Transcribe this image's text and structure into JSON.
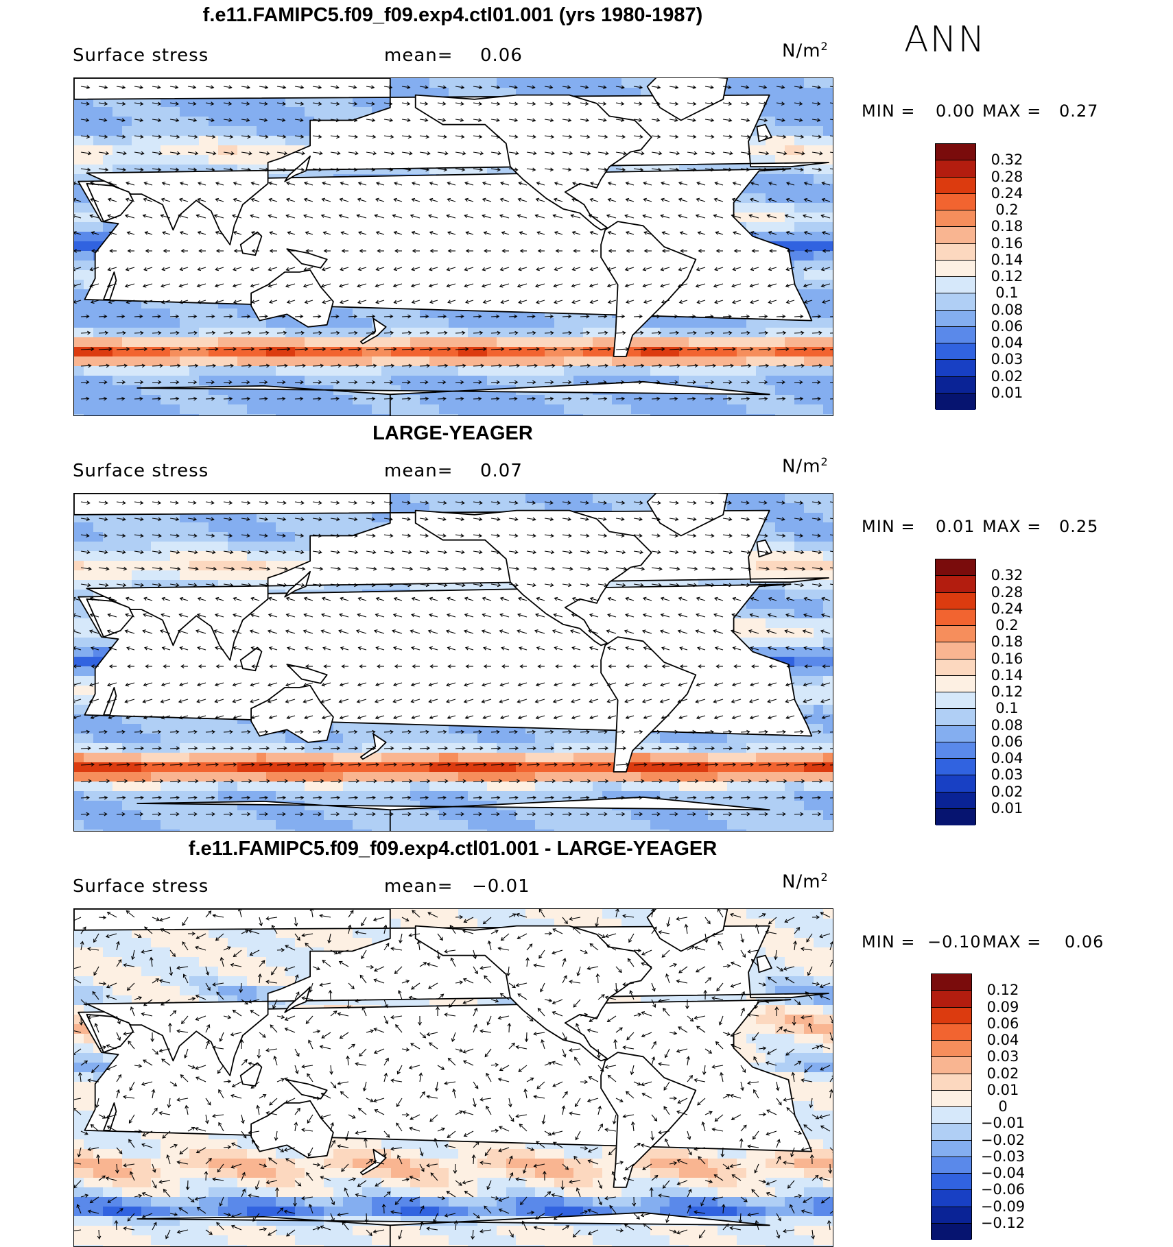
{
  "season": "ANN",
  "units_main": "N/m",
  "units_exp": "2",
  "panels": [
    {
      "title": "f.e11.FAMIPC5.f09_f09.exp4.ctl01.001 (yrs 1980-1987)",
      "variable": "Surface stress",
      "mean_label": "mean=",
      "mean_value": "0.06",
      "min_label": "MIN =",
      "min_value": "0.00",
      "max_label": "MAX =",
      "max_value": "0.27",
      "colorbar_labels": [
        "0.32",
        "0.28",
        "0.24",
        "0.2",
        "0.18",
        "0.16",
        "0.14",
        "0.12",
        "0.1",
        "0.08",
        "0.06",
        "0.04",
        "0.03",
        "0.02",
        "0.01"
      ]
    },
    {
      "title": "LARGE-YEAGER",
      "variable": "Surface stress",
      "mean_label": "mean=",
      "mean_value": "0.07",
      "min_label": "MIN =",
      "min_value": "0.01",
      "max_label": "MAX =",
      "max_value": "0.25",
      "colorbar_labels": [
        "0.32",
        "0.28",
        "0.24",
        "0.2",
        "0.18",
        "0.16",
        "0.14",
        "0.12",
        "0.1",
        "0.08",
        "0.06",
        "0.04",
        "0.03",
        "0.02",
        "0.01"
      ]
    },
    {
      "title": "f.e11.FAMIPC5.f09_f09.exp4.ctl01.001 - LARGE-YEAGER",
      "variable": "Surface stress",
      "mean_label": "mean=",
      "mean_value": "−0.01",
      "min_label": "MIN =",
      "min_value": "−0.10",
      "max_label": "MAX =",
      "max_value": "0.06",
      "colorbar_labels": [
        "0.12",
        "0.09",
        "0.06",
        "0.04",
        "0.03",
        "0.02",
        "0.01",
        "0",
        "−0.01",
        "−0.02",
        "−0.03",
        "−0.04",
        "−0.06",
        "−0.09",
        "−0.12"
      ]
    }
  ],
  "colors": {
    "abs_scale": [
      "#7a0c0c",
      "#b31d0f",
      "#dc3b0f",
      "#f26430",
      "#f68e5c",
      "#f9b591",
      "#fcd8bf",
      "#fdf0e3",
      "#d6e8fa",
      "#b0cff5",
      "#84aef0",
      "#5a89ea",
      "#3163e0",
      "#1840c4",
      "#0a2396",
      "#061470"
    ],
    "diff_scale": [
      "#7a0c0c",
      "#b31d0f",
      "#dc3b0f",
      "#f26430",
      "#f68e5c",
      "#f9b591",
      "#fcd8bf",
      "#fdf0e3",
      "#d6e8fa",
      "#b0cff5",
      "#84aef0",
      "#5a89ea",
      "#3163e0",
      "#1840c4",
      "#0a2396",
      "#061470"
    ],
    "land": "#ffffff",
    "coast": "#000000"
  }
}
